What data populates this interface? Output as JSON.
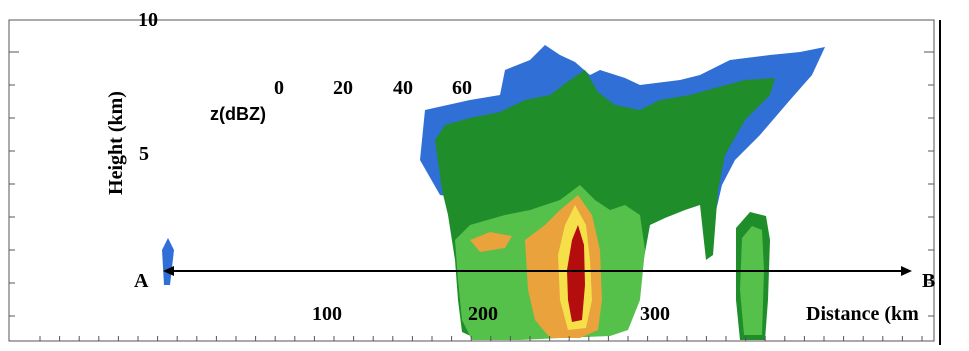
{
  "chart_data": {
    "type": "heatmap",
    "description_text": {
      "ylabel": "Height (km)",
      "xlabel": "Distance (km",
      "colorbar_label": "z(dBZ)"
    },
    "y_ticks": [
      "5",
      "10"
    ],
    "x_ticks": [
      "100",
      "200",
      "300"
    ],
    "colorbar_ticks": [
      "0",
      "20",
      "40",
      "60"
    ],
    "ylim": [
      0,
      10
    ],
    "section_endpoints": {
      "start": "A",
      "end": "B"
    },
    "colors": {
      "level_0": "#2f6fd6",
      "level_20": "#1f8e2a",
      "level_30": "#55c04a",
      "level_40": "#e9a23c",
      "level_50": "#f5e04a",
      "level_60": "#b30d0d"
    }
  }
}
